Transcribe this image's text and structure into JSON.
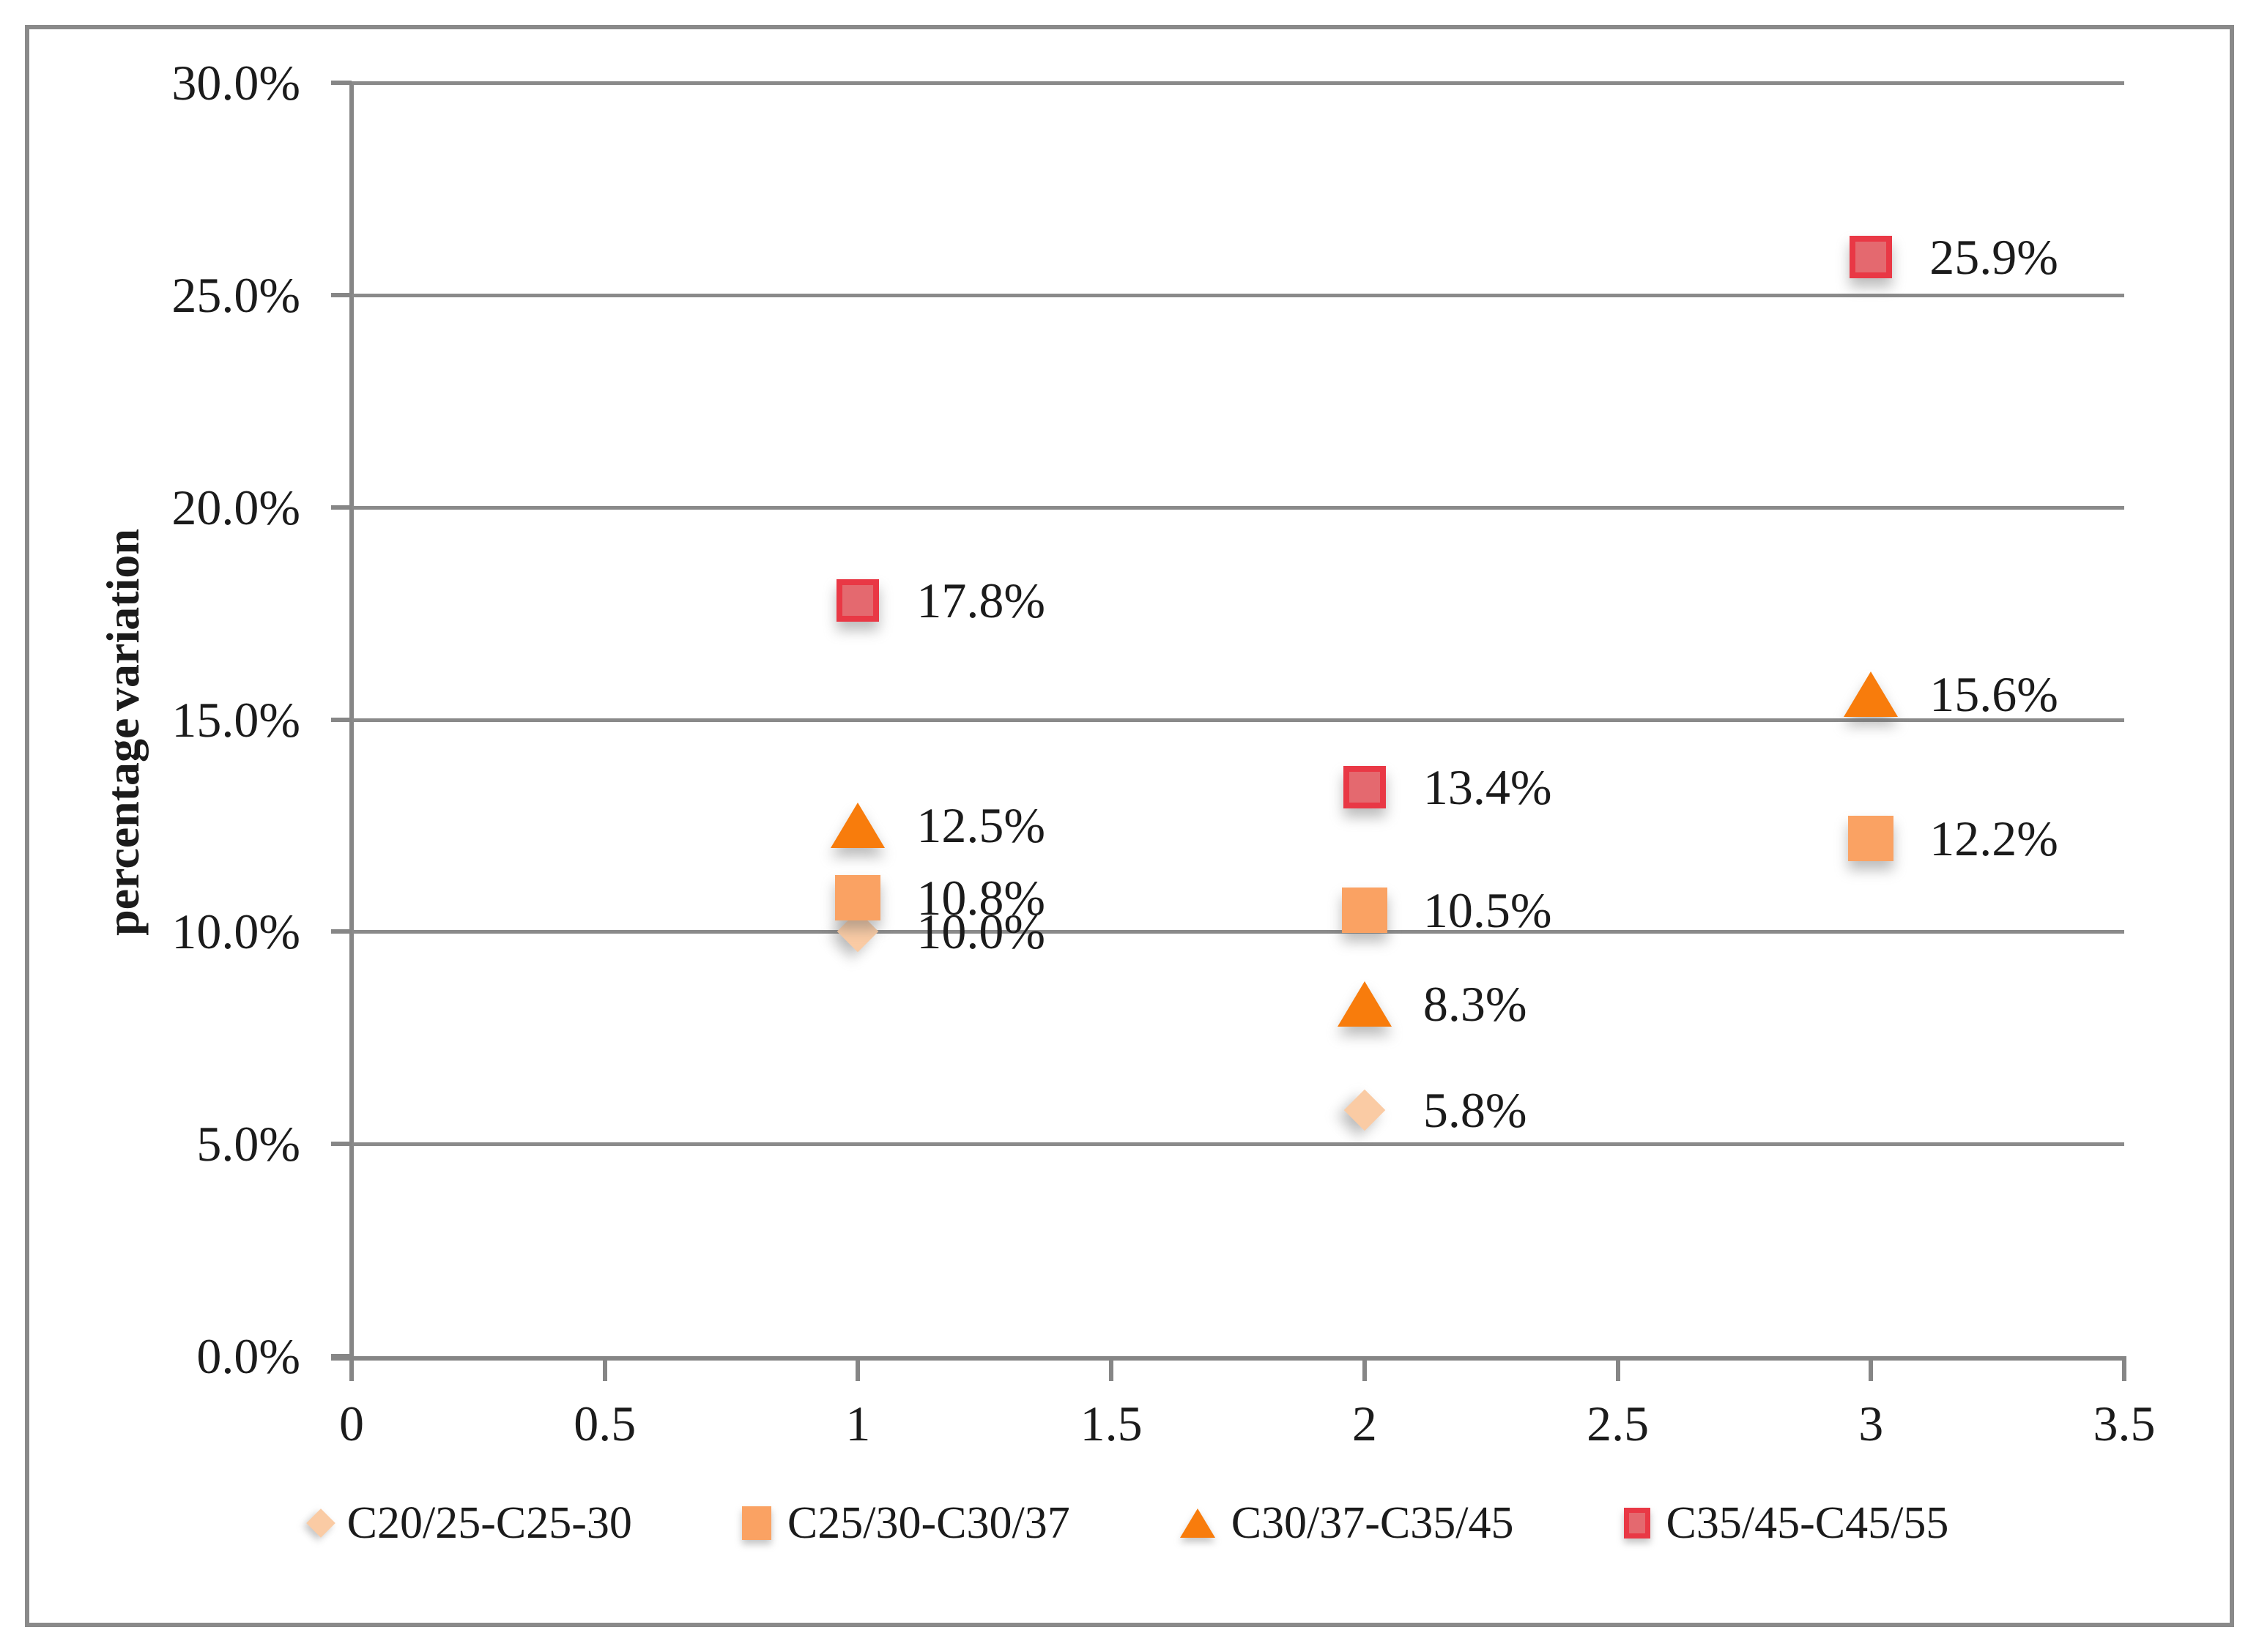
{
  "figure": {
    "background": "#FFFFFF",
    "frame_border_color": "#8A8A8A",
    "axis_color": "#868686",
    "gridline_color": "#8A8A8A",
    "text_color": "#1B1B1B"
  },
  "chart_data": {
    "type": "scatter",
    "title": "",
    "xlabel": "",
    "ylabel": "percentage variation",
    "xlim": [
      0,
      3.5
    ],
    "ylim_percent": [
      0,
      30
    ],
    "grid": "horizontal",
    "legend_position": "bottom",
    "x_ticks": [
      "0",
      "0.5",
      "1",
      "1.5",
      "2",
      "2.5",
      "3",
      "3.5"
    ],
    "y_ticks": [
      "0.0%",
      "5.0%",
      "10.0%",
      "15.0%",
      "20.0%",
      "25.0%",
      "30.0%"
    ],
    "series": [
      {
        "name": "C20/25-C25-30",
        "marker": "diamond",
        "fill": "#FACBA4",
        "points": [
          {
            "x": 1,
            "y_percent": 10.0,
            "label": "10.0%"
          },
          {
            "x": 2,
            "y_percent": 5.8,
            "label": "5.8%"
          }
        ]
      },
      {
        "name": "C25/30-C30/37",
        "marker": "square",
        "fill": "#FAA263",
        "points": [
          {
            "x": 1,
            "y_percent": 10.8,
            "label": "10.8%"
          },
          {
            "x": 2,
            "y_percent": 10.5,
            "label": "10.5%"
          },
          {
            "x": 3,
            "y_percent": 12.2,
            "label": "12.2%"
          }
        ]
      },
      {
        "name": "C30/37-C35/45",
        "marker": "triangle",
        "fill": "#F87C0C",
        "points": [
          {
            "x": 1,
            "y_percent": 12.5,
            "label": "12.5%"
          },
          {
            "x": 2,
            "y_percent": 8.3,
            "label": "8.3%"
          },
          {
            "x": 3,
            "y_percent": 15.6,
            "label": "15.6%"
          }
        ]
      },
      {
        "name": "C35/45-C45/55",
        "marker": "red-square",
        "fill": "#E4696F",
        "border": "#E93845",
        "points": [
          {
            "x": 1,
            "y_percent": 17.8,
            "label": "17.8%"
          },
          {
            "x": 2,
            "y_percent": 13.4,
            "label": "13.4%"
          },
          {
            "x": 3,
            "y_percent": 25.9,
            "label": "25.9%"
          }
        ]
      }
    ]
  }
}
